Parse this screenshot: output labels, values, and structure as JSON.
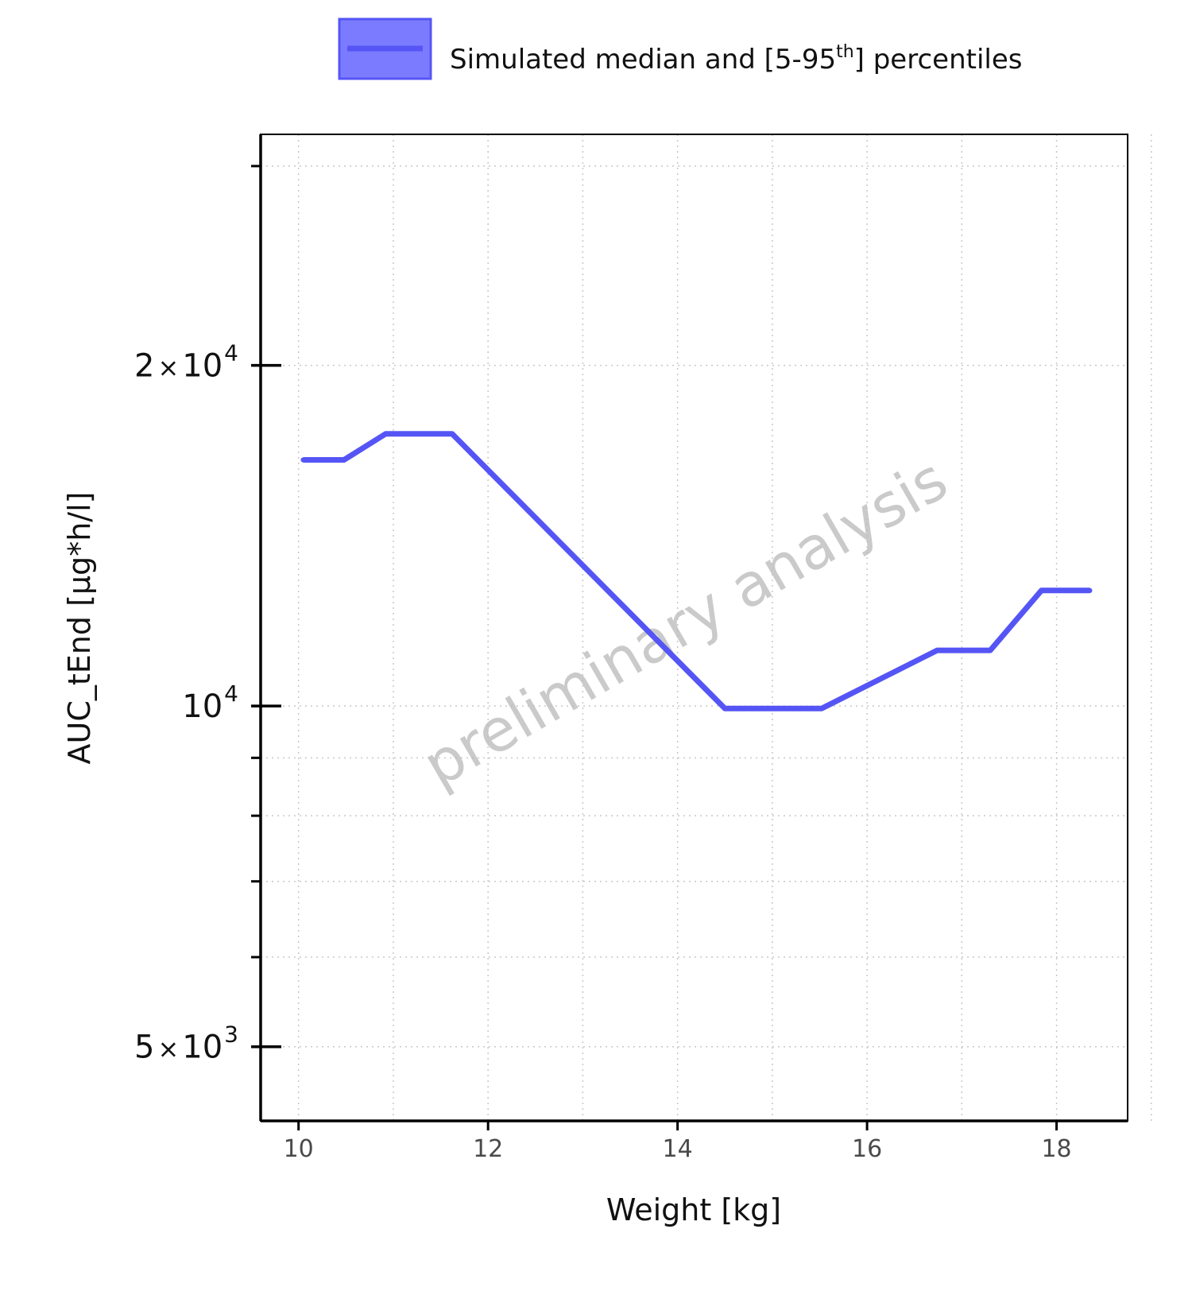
{
  "chart_data": {
    "type": "line",
    "xlabel": "Weight [kg]",
    "ylabel": "AUC_tEnd [µg*h/l]",
    "xlim": [
      9.6,
      18.75
    ],
    "ylim": [
      4300,
      32000
    ],
    "y_scale": "log",
    "x_ticks": [
      10,
      12,
      14,
      16,
      18
    ],
    "x_tick_labels": [
      "10",
      "12",
      "14",
      "16",
      "18"
    ],
    "y_major_ticks": [
      {
        "value": 5000,
        "mantissa": "5",
        "times": "×",
        "base": "10",
        "exp": "3"
      },
      {
        "value": 10000,
        "mantissa": "",
        "times": "",
        "base": "10",
        "exp": "4"
      },
      {
        "value": 20000,
        "mantissa": "2",
        "times": "×",
        "base": "10",
        "exp": "4"
      }
    ],
    "y_minor_ticks": [
      6000,
      7000,
      8000,
      9000,
      30000
    ],
    "grid": true,
    "legend_position": "top",
    "watermark": "preliminary analysis",
    "series": [
      {
        "name": "Simulated median and [5-95th] percentiles",
        "legend_main": "Simulated median and [5-95",
        "legend_sup": "th",
        "legend_end": "] percentiles",
        "color": "#5555f5",
        "ribbon_color": "#7b7bff",
        "x": [
          10.05,
          10.48,
          10.92,
          11.62,
          14.5,
          15.52,
          16.74,
          17.3,
          17.84,
          18.35
        ],
        "y": [
          16500,
          16500,
          17400,
          17400,
          9950,
          9950,
          11200,
          11200,
          12650,
          12650
        ]
      }
    ]
  }
}
